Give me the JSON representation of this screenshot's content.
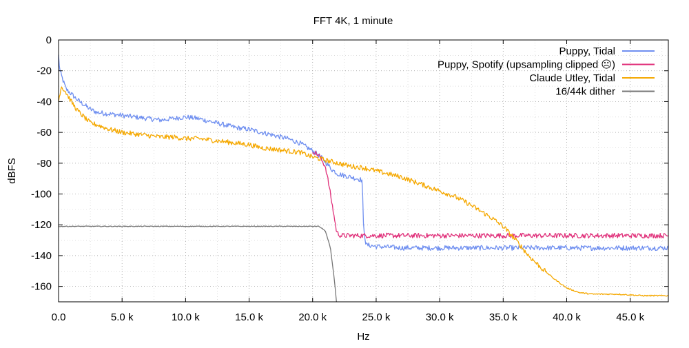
{
  "chart_data": {
    "type": "line",
    "title": "FFT 4K, 1 minute",
    "xlabel": "Hz",
    "ylabel": "dBFS",
    "xlim": [
      0,
      48000
    ],
    "ylim": [
      -170,
      0
    ],
    "x_ticks": [
      0,
      5000,
      10000,
      15000,
      20000,
      25000,
      30000,
      35000,
      40000,
      45000
    ],
    "x_tick_labels": [
      "0.0",
      "5.0 k",
      "10.0 k",
      "15.0 k",
      "20.0 k",
      "25.0 k",
      "30.0 k",
      "35.0 k",
      "40.0 k",
      "45.0 k"
    ],
    "y_ticks": [
      0,
      -20,
      -40,
      -60,
      -80,
      -100,
      -120,
      -140,
      -160
    ],
    "y_tick_labels": [
      "0",
      "-20",
      "-40",
      "-60",
      "-80",
      "-100",
      "-120",
      "-140",
      "-160"
    ],
    "grid": true,
    "legend_position": "top-right",
    "series": [
      {
        "name": "Puppy, Tidal",
        "color": "#6f8ff0",
        "x": [
          0,
          100,
          300,
          600,
          1000,
          1500,
          2000,
          2500,
          3000,
          4000,
          5000,
          6000,
          7000,
          8000,
          9000,
          10000,
          11000,
          12000,
          13000,
          14000,
          15000,
          16000,
          17000,
          18000,
          19000,
          20000,
          20500,
          21000,
          21500,
          22000,
          22500,
          23000,
          23500,
          23900,
          24000,
          24200,
          25000,
          27000,
          30000,
          33000,
          36000,
          40000,
          44000,
          48000
        ],
        "y": [
          -10,
          -20,
          -25,
          -32,
          -35,
          -39,
          -42,
          -45,
          -47,
          -48,
          -49,
          -50,
          -51,
          -52,
          -51,
          -50,
          -51,
          -53,
          -55,
          -57,
          -58,
          -60,
          -62,
          -64,
          -67,
          -72,
          -75,
          -79,
          -84,
          -87,
          -88,
          -89,
          -90,
          -91,
          -120,
          -133,
          -134,
          -135,
          -135,
          -135,
          -135,
          -135,
          -135,
          -135
        ]
      },
      {
        "name": "Puppy, Spotify (upsampling clipped ☹)",
        "color": "#e0307a",
        "x": [
          20000,
          20500,
          21000,
          21300,
          21600,
          21900,
          22200,
          23000,
          25000,
          30000,
          35000,
          40000,
          45000,
          48000
        ],
        "y": [
          -72,
          -75,
          -82,
          -95,
          -110,
          -125,
          -127,
          -127,
          -127,
          -127,
          -127,
          -127,
          -127,
          -127
        ]
      },
      {
        "name": "Claude Utley, Tidal",
        "color": "#f5a800",
        "x": [
          0,
          200,
          500,
          1000,
          1500,
          2000,
          2500,
          3000,
          4000,
          5000,
          6000,
          7000,
          8000,
          9000,
          10000,
          11000,
          12000,
          13000,
          14000,
          15000,
          16000,
          17000,
          18000,
          19000,
          20000,
          21000,
          22000,
          23000,
          24000,
          25000,
          26000,
          27000,
          28000,
          29000,
          30000,
          31000,
          32000,
          33000,
          34000,
          35000,
          36000,
          37000,
          38000,
          39000,
          40000,
          41000,
          42000,
          44000,
          46000,
          48000
        ],
        "y": [
          -40,
          -30,
          -33,
          -40,
          -46,
          -50,
          -54,
          -55,
          -58,
          -60,
          -61,
          -62,
          -63,
          -63,
          -64,
          -64,
          -65,
          -66,
          -67,
          -68,
          -70,
          -71,
          -72,
          -73,
          -76,
          -78,
          -80,
          -82,
          -83,
          -85,
          -87,
          -89,
          -92,
          -95,
          -98,
          -101,
          -105,
          -110,
          -115,
          -121,
          -130,
          -140,
          -148,
          -155,
          -161,
          -164,
          -165,
          -165,
          -166,
          -166
        ]
      },
      {
        "name": "16/44k dither",
        "color": "#777777",
        "x": [
          0,
          5000,
          10000,
          15000,
          18000,
          19500,
          20500,
          21000,
          21400,
          21700,
          21900
        ],
        "y": [
          -121,
          -121,
          -121,
          -121,
          -121,
          -121,
          -121,
          -124,
          -135,
          -155,
          -172
        ]
      }
    ]
  }
}
